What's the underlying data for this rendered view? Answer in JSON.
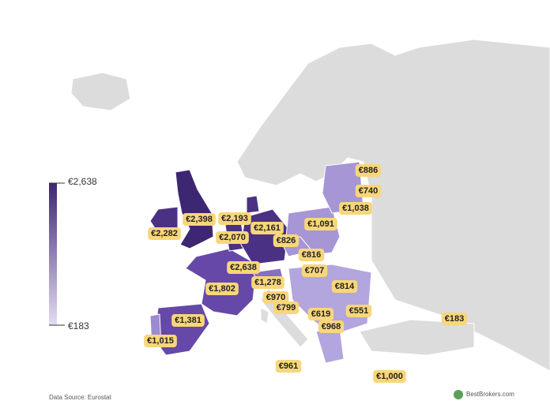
{
  "legend": {
    "max": "€2,638",
    "min": "€183"
  },
  "labels": [
    "€886",
    "€740",
    "€1,038",
    "€1,091",
    "€2,398",
    "€2,193",
    "€2,282",
    "€2,161",
    "€2,070",
    "€826",
    "€816",
    "€2,638",
    "€707",
    "€1,278",
    "€1,802",
    "€814",
    "€970",
    "€799",
    "€551",
    "€619",
    "€1,381",
    "€968",
    "€183",
    "€1,015",
    "€961",
    "€1,000"
  ],
  "source": "Data Source: Eurostat",
  "brand": "BestBrokers.com"
}
